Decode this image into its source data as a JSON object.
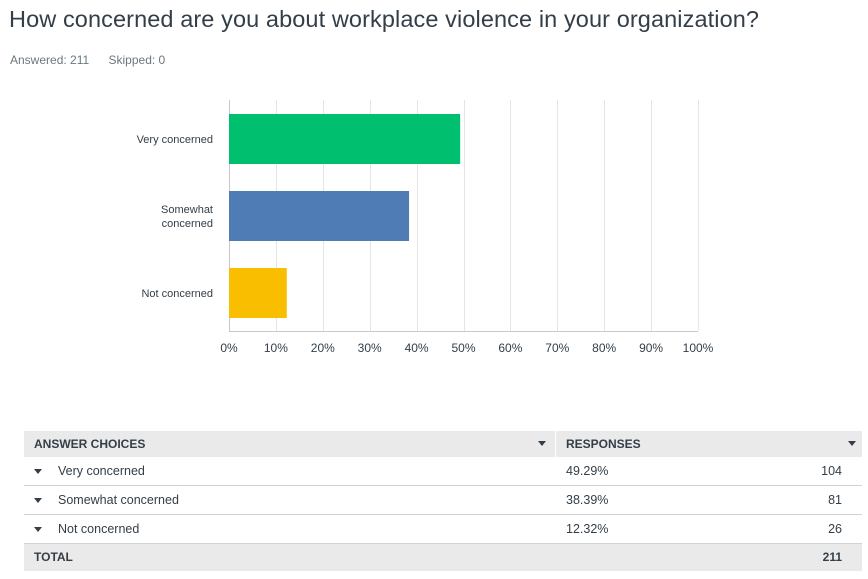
{
  "question": {
    "title": "How concerned are you about workplace violence in your organization?",
    "answered": "Answered: 211",
    "skipped": "Skipped: 0"
  },
  "chart_data": {
    "type": "bar",
    "orientation": "horizontal",
    "categories": [
      "Very concerned",
      "Somewhat concerned",
      "Not concerned"
    ],
    "category_label_lines": [
      [
        "Very concerned"
      ],
      [
        "Somewhat",
        "concerned"
      ],
      [
        "Not concerned"
      ]
    ],
    "values": [
      49.29,
      38.39,
      12.32
    ],
    "colors": [
      "#00bf6f",
      "#507cb6",
      "#f9be00"
    ],
    "xlim": [
      0,
      100
    ],
    "xticks": [
      "0%",
      "10%",
      "20%",
      "30%",
      "40%",
      "50%",
      "60%",
      "70%",
      "80%",
      "90%",
      "100%"
    ],
    "grid": true
  },
  "table": {
    "headers": {
      "choices": "ANSWER CHOICES",
      "responses": "RESPONSES"
    },
    "rows": [
      {
        "choice": "Very concerned",
        "percent": "49.29%",
        "count": "104"
      },
      {
        "choice": "Somewhat concerned",
        "percent": "38.39%",
        "count": "81"
      },
      {
        "choice": "Not concerned",
        "percent": "12.32%",
        "count": "26"
      }
    ],
    "total": {
      "label": "TOTAL",
      "count": "211"
    }
  },
  "icons": {
    "sort": "caret-down-icon",
    "expand": "caret-down-icon"
  }
}
